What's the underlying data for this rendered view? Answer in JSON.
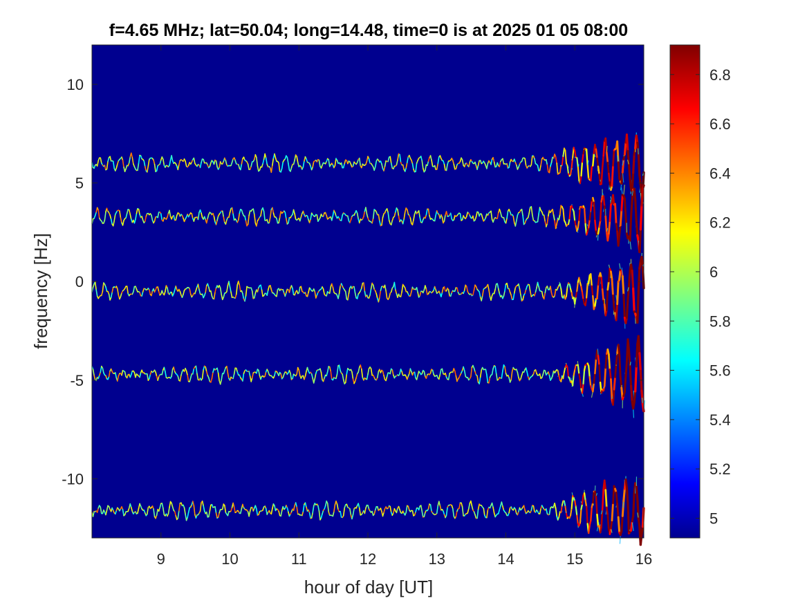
{
  "chart_data": {
    "type": "heatmap",
    "title": "f=4.65 MHz;  lat=50.04; long=14.48, time=0 is at 2025 01 05 08:00",
    "xlabel": "hour of day [UT]",
    "ylabel": "frequency [Hz]",
    "xlim": [
      8,
      16
    ],
    "ylim": [
      -13,
      12
    ],
    "x_ticks": [
      9,
      10,
      11,
      12,
      13,
      14,
      15,
      16
    ],
    "y_ticks": [
      10,
      5,
      0,
      -5,
      -10
    ],
    "grid": false,
    "background_color": "#00008f",
    "colorbar": {
      "ticks": [
        6.8,
        6.6,
        6.4,
        6.2,
        6,
        5.8,
        5.6,
        5.4,
        5.2,
        5
      ],
      "range": [
        4.92,
        6.92
      ],
      "colormap": "jet"
    },
    "traces": [
      {
        "center_frequency_hz": 6.0,
        "description_note": ""
      },
      {
        "center_frequency_hz": 3.3
      },
      {
        "center_frequency_hz": -0.5
      },
      {
        "center_frequency_hz": -4.7
      },
      {
        "center_frequency_hz": -11.6
      }
    ]
  }
}
